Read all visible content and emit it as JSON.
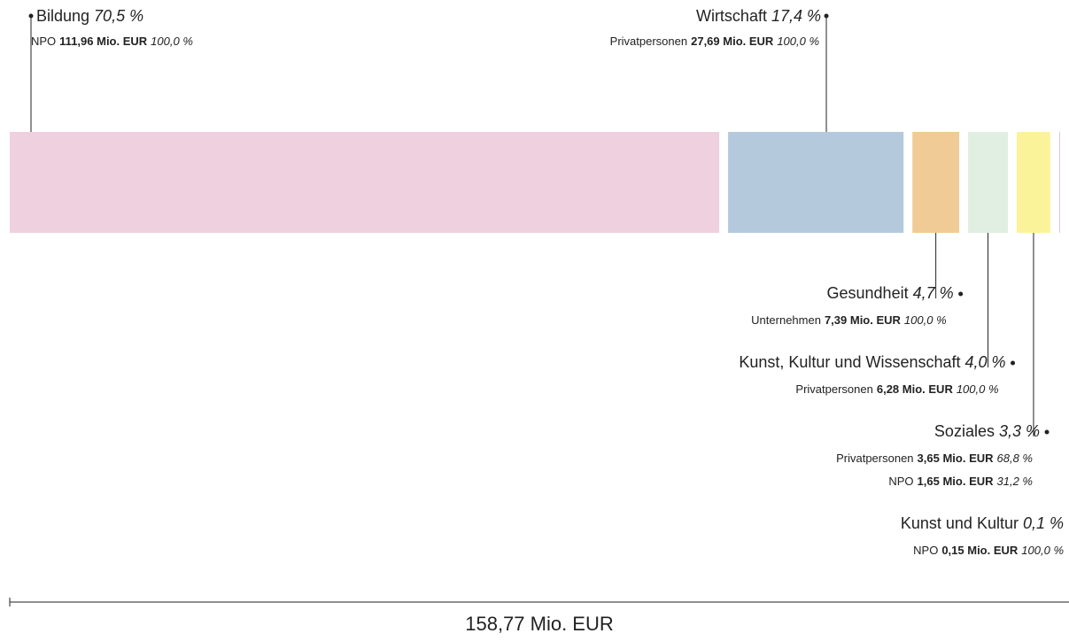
{
  "chart_data": {
    "type": "stacked-bar",
    "total": 158.77,
    "total_label": "158,77 Mio. EUR",
    "segments": [
      {
        "name": "Bildung",
        "share": 70.5,
        "share_label": "70,5 %",
        "color": "#efd0df",
        "parts": [
          {
            "name": "NPO",
            "amount": 111.96,
            "amount_label": "111,96 Mio. EUR",
            "share": 100,
            "share_label": "100,0 %"
          }
        ]
      },
      {
        "name": "Wirtschaft",
        "share": 17.4,
        "share_label": "17,4 %",
        "color": "#b4cadc",
        "parts": [
          {
            "name": "Privatpersonen",
            "amount": 27.69,
            "amount_label": "27,69 Mio. EUR",
            "share": 100,
            "share_label": "100,0 %"
          }
        ]
      },
      {
        "name": "Gesundheit",
        "share": 4.7,
        "share_label": "4,7 %",
        "color": "#f0cb96",
        "parts": [
          {
            "name": "Unternehmen",
            "amount": 7.39,
            "amount_label": "7,39 Mio. EUR",
            "share": 100,
            "share_label": "100,0 %"
          }
        ]
      },
      {
        "name": "Kunst, Kultur und Wissenschaft",
        "share": 4.0,
        "share_label": "4,0 %",
        "color": "#e0efe1",
        "parts": [
          {
            "name": "Privatpersonen",
            "amount": 6.28,
            "amount_label": "6,28 Mio. EUR",
            "share": 100,
            "share_label": "100,0 %"
          }
        ]
      },
      {
        "name": "Soziales",
        "share": 3.3,
        "share_label": "3,3 %",
        "color": "#fbf39a",
        "parts": [
          {
            "name": "Privatpersonen",
            "amount": 3.65,
            "amount_label": "3,65 Mio. EUR",
            "share": 68.8,
            "share_label": "68,8 %"
          },
          {
            "name": "NPO",
            "amount": 1.65,
            "amount_label": "1,65 Mio. EUR",
            "share": 31.2,
            "share_label": "31,2 %"
          }
        ]
      },
      {
        "name": "Kunst und Kultur",
        "share": 0.1,
        "share_label": "0,1 %",
        "color": "#d9c7e6",
        "parts": [
          {
            "name": "NPO",
            "amount": 0.15,
            "amount_label": "0,15 Mio. EUR",
            "share": 100,
            "share_label": "100,0 %"
          }
        ]
      }
    ]
  }
}
